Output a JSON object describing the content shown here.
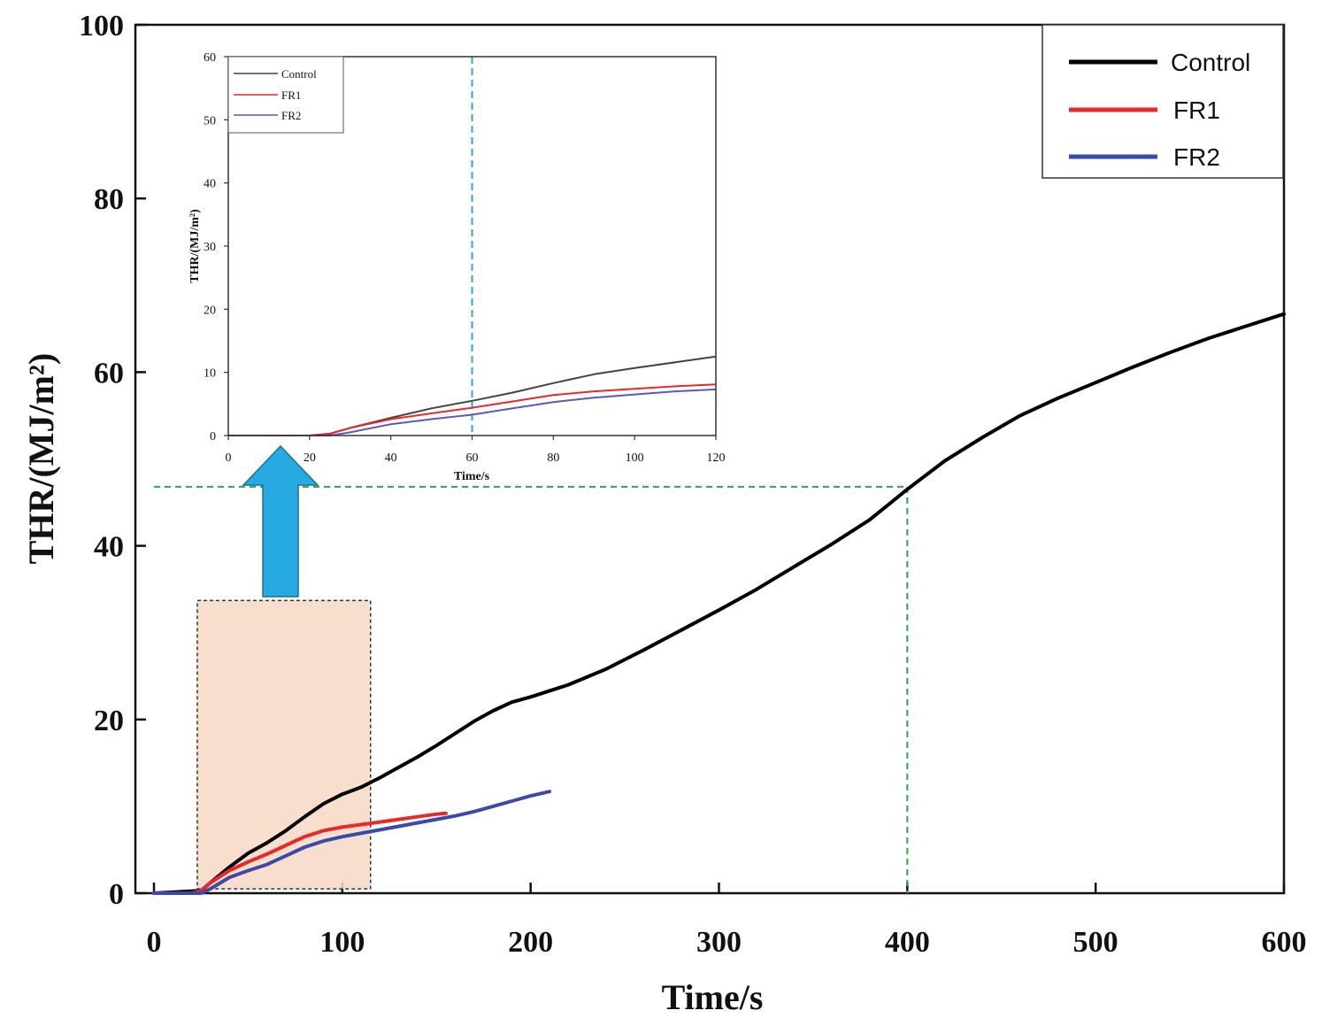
{
  "chart_data": {
    "type": "line",
    "title": "",
    "xlabel": "Time/s",
    "ylabel": "THR/(MJ/m²)",
    "xlim": [
      0,
      600
    ],
    "ylim": [
      0,
      100
    ],
    "xticks": [
      0,
      100,
      200,
      300,
      400,
      500,
      600
    ],
    "yticks": [
      0,
      20,
      40,
      60,
      80,
      100
    ],
    "x_tick_labels": [
      "0",
      "100",
      "200",
      "300",
      "400",
      "500",
      "600"
    ],
    "y_tick_labels": [
      "0",
      "20",
      "40",
      "60",
      "80",
      "100"
    ],
    "legend_position": "top-right",
    "series": [
      {
        "name": "Control",
        "color": "#000000",
        "points": [
          [
            0,
            0
          ],
          [
            25,
            0.3
          ],
          [
            30,
            1.2
          ],
          [
            40,
            3
          ],
          [
            50,
            4.6
          ],
          [
            60,
            5.8
          ],
          [
            70,
            7.2
          ],
          [
            80,
            8.8
          ],
          [
            90,
            10.3
          ],
          [
            100,
            11.4
          ],
          [
            110,
            12.2
          ],
          [
            120,
            13.3
          ],
          [
            130,
            14.5
          ],
          [
            140,
            15.7
          ],
          [
            150,
            17
          ],
          [
            160,
            18.4
          ],
          [
            170,
            19.8
          ],
          [
            180,
            21
          ],
          [
            190,
            22
          ],
          [
            200,
            22.6
          ],
          [
            220,
            24
          ],
          [
            240,
            25.8
          ],
          [
            260,
            28
          ],
          [
            280,
            30.3
          ],
          [
            300,
            32.6
          ],
          [
            320,
            35
          ],
          [
            340,
            37.6
          ],
          [
            360,
            40.2
          ],
          [
            380,
            43
          ],
          [
            400,
            46.5
          ],
          [
            420,
            49.8
          ],
          [
            440,
            52.5
          ],
          [
            460,
            55
          ],
          [
            480,
            57
          ],
          [
            500,
            58.8
          ],
          [
            520,
            60.6
          ],
          [
            540,
            62.3
          ],
          [
            560,
            63.9
          ],
          [
            580,
            65.3
          ],
          [
            600,
            66.7
          ]
        ]
      },
      {
        "name": "FR1",
        "color": "#e8282b",
        "points": [
          [
            0,
            0
          ],
          [
            20,
            0
          ],
          [
            25,
            0.3
          ],
          [
            30,
            1.2
          ],
          [
            40,
            2.6
          ],
          [
            50,
            3.6
          ],
          [
            60,
            4.5
          ],
          [
            70,
            5.5
          ],
          [
            80,
            6.5
          ],
          [
            90,
            7.2
          ],
          [
            100,
            7.6
          ],
          [
            110,
            7.9
          ],
          [
            120,
            8.2
          ],
          [
            130,
            8.5
          ],
          [
            140,
            8.8
          ],
          [
            150,
            9.1
          ],
          [
            155,
            9.2
          ]
        ]
      },
      {
        "name": "FR2",
        "color": "#3b4aa8",
        "points": [
          [
            0,
            0
          ],
          [
            25,
            0
          ],
          [
            30,
            0.5
          ],
          [
            40,
            1.8
          ],
          [
            50,
            2.6
          ],
          [
            60,
            3.3
          ],
          [
            70,
            4.3
          ],
          [
            80,
            5.3
          ],
          [
            90,
            6
          ],
          [
            100,
            6.5
          ],
          [
            110,
            6.9
          ],
          [
            120,
            7.3
          ],
          [
            130,
            7.7
          ],
          [
            140,
            8.1
          ],
          [
            150,
            8.5
          ],
          [
            160,
            8.9
          ],
          [
            170,
            9.4
          ],
          [
            180,
            10
          ],
          [
            190,
            10.6
          ],
          [
            200,
            11.2
          ],
          [
            210,
            11.7
          ]
        ]
      }
    ],
    "annotations": {
      "crosshair_x": 400,
      "crosshair_y": 46.8,
      "zoom_region": {
        "x_min": 23,
        "x_max": 115,
        "y_min": 0.5,
        "y_max": 33.7
      }
    },
    "inset": {
      "type": "line",
      "xlabel": "Time/s",
      "ylabel": "THR/(MJ/m²)",
      "xlim": [
        0,
        120
      ],
      "ylim": [
        0,
        60
      ],
      "x_tick_labels": [
        "0",
        "20",
        "40",
        "60",
        "80",
        "100",
        "120"
      ],
      "y_tick_labels": [
        "0",
        "10",
        "20",
        "30",
        "40",
        "50",
        "60"
      ],
      "legend_position": "top-left",
      "vline_x": 60,
      "series": [
        {
          "name": "Control",
          "color": "#444444",
          "points": [
            [
              0,
              0
            ],
            [
              20,
              0
            ],
            [
              25,
              0.3
            ],
            [
              30,
              1.2
            ],
            [
              40,
              2.8
            ],
            [
              50,
              4.3
            ],
            [
              60,
              5.5
            ],
            [
              70,
              6.8
            ],
            [
              80,
              8.3
            ],
            [
              90,
              9.7
            ],
            [
              100,
              10.7
            ],
            [
              110,
              11.6
            ],
            [
              120,
              12.5
            ]
          ]
        },
        {
          "name": "FR1",
          "color": "#e8282b",
          "points": [
            [
              0,
              0
            ],
            [
              20,
              0
            ],
            [
              25,
              0.3
            ],
            [
              30,
              1.2
            ],
            [
              40,
              2.6
            ],
            [
              50,
              3.5
            ],
            [
              60,
              4.4
            ],
            [
              70,
              5.4
            ],
            [
              80,
              6.4
            ],
            [
              90,
              7.0
            ],
            [
              100,
              7.4
            ],
            [
              110,
              7.8
            ],
            [
              120,
              8.1
            ]
          ]
        },
        {
          "name": "FR2",
          "color": "#5a5ab8",
          "points": [
            [
              0,
              0
            ],
            [
              25,
              0
            ],
            [
              30,
              0.5
            ],
            [
              40,
              1.8
            ],
            [
              50,
              2.6
            ],
            [
              60,
              3.3
            ],
            [
              70,
              4.3
            ],
            [
              80,
              5.3
            ],
            [
              90,
              6.0
            ],
            [
              100,
              6.5
            ],
            [
              110,
              7.0
            ],
            [
              120,
              7.3
            ]
          ]
        }
      ]
    }
  }
}
